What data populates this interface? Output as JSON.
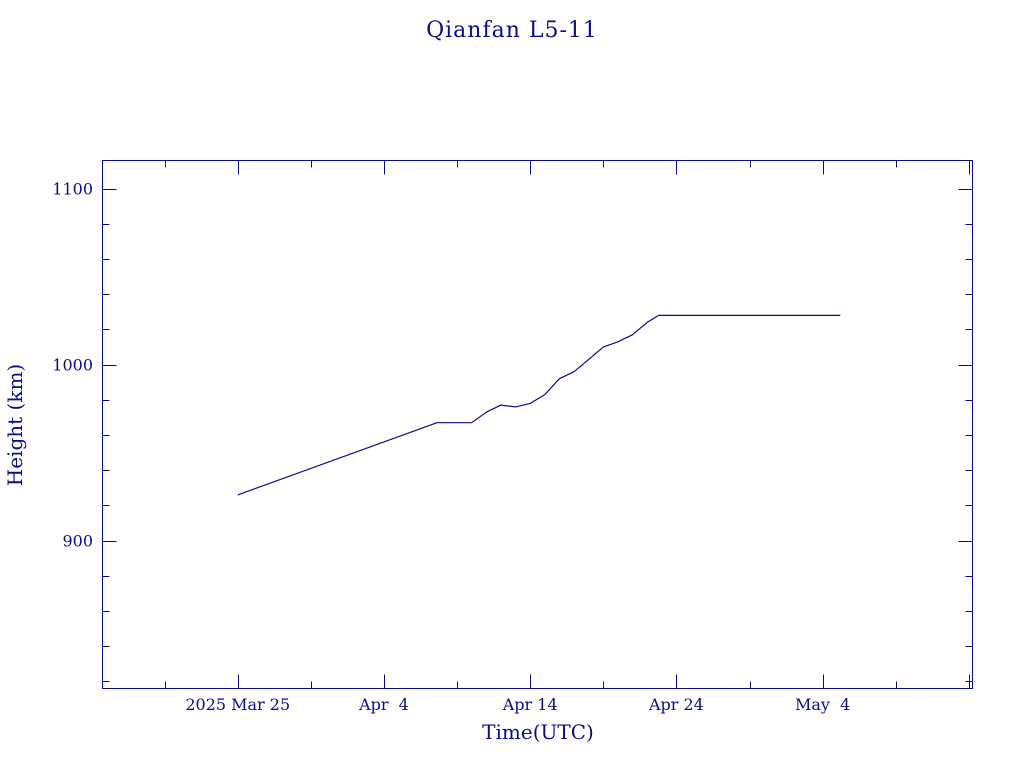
{
  "colors": {
    "foreground": "#0b0b8c",
    "background": "#ffffff"
  },
  "chart_data": {
    "type": "line",
    "title": "Qianfan L5-11",
    "xlabel": "Time(UTC)",
    "ylabel": "Height (km)",
    "x_tick_labels": [
      "2025 Mar 25",
      "Apr  4",
      "Apr 14",
      "Apr 24",
      "May  4"
    ],
    "x_tick_dates": [
      "2025-03-25",
      "2025-04-04",
      "2025-04-14",
      "2025-04-24",
      "2025-05-04"
    ],
    "y_ticks": [
      900,
      1000,
      1100
    ],
    "ylim": [
      816,
      1116
    ],
    "xlim": [
      "2025-03-15T18:00",
      "2025-05-14T06:00"
    ],
    "grid": false,
    "series": [
      {
        "x": [
          "2025-03-25",
          "2025-04-07T15:00",
          "2025-04-10",
          "2025-04-11",
          "2025-04-12",
          "2025-04-13",
          "2025-04-14",
          "2025-04-15",
          "2025-04-16",
          "2025-04-17",
          "2025-04-18",
          "2025-04-19",
          "2025-04-20",
          "2025-04-21",
          "2025-04-22",
          "2025-04-22T19:00",
          "2025-05-05T05:00"
        ],
        "y": [
          926,
          967,
          967,
          973,
          977,
          976,
          978,
          983,
          992,
          996,
          1003,
          1010,
          1013,
          1017,
          1024,
          1028,
          1028
        ]
      }
    ]
  }
}
